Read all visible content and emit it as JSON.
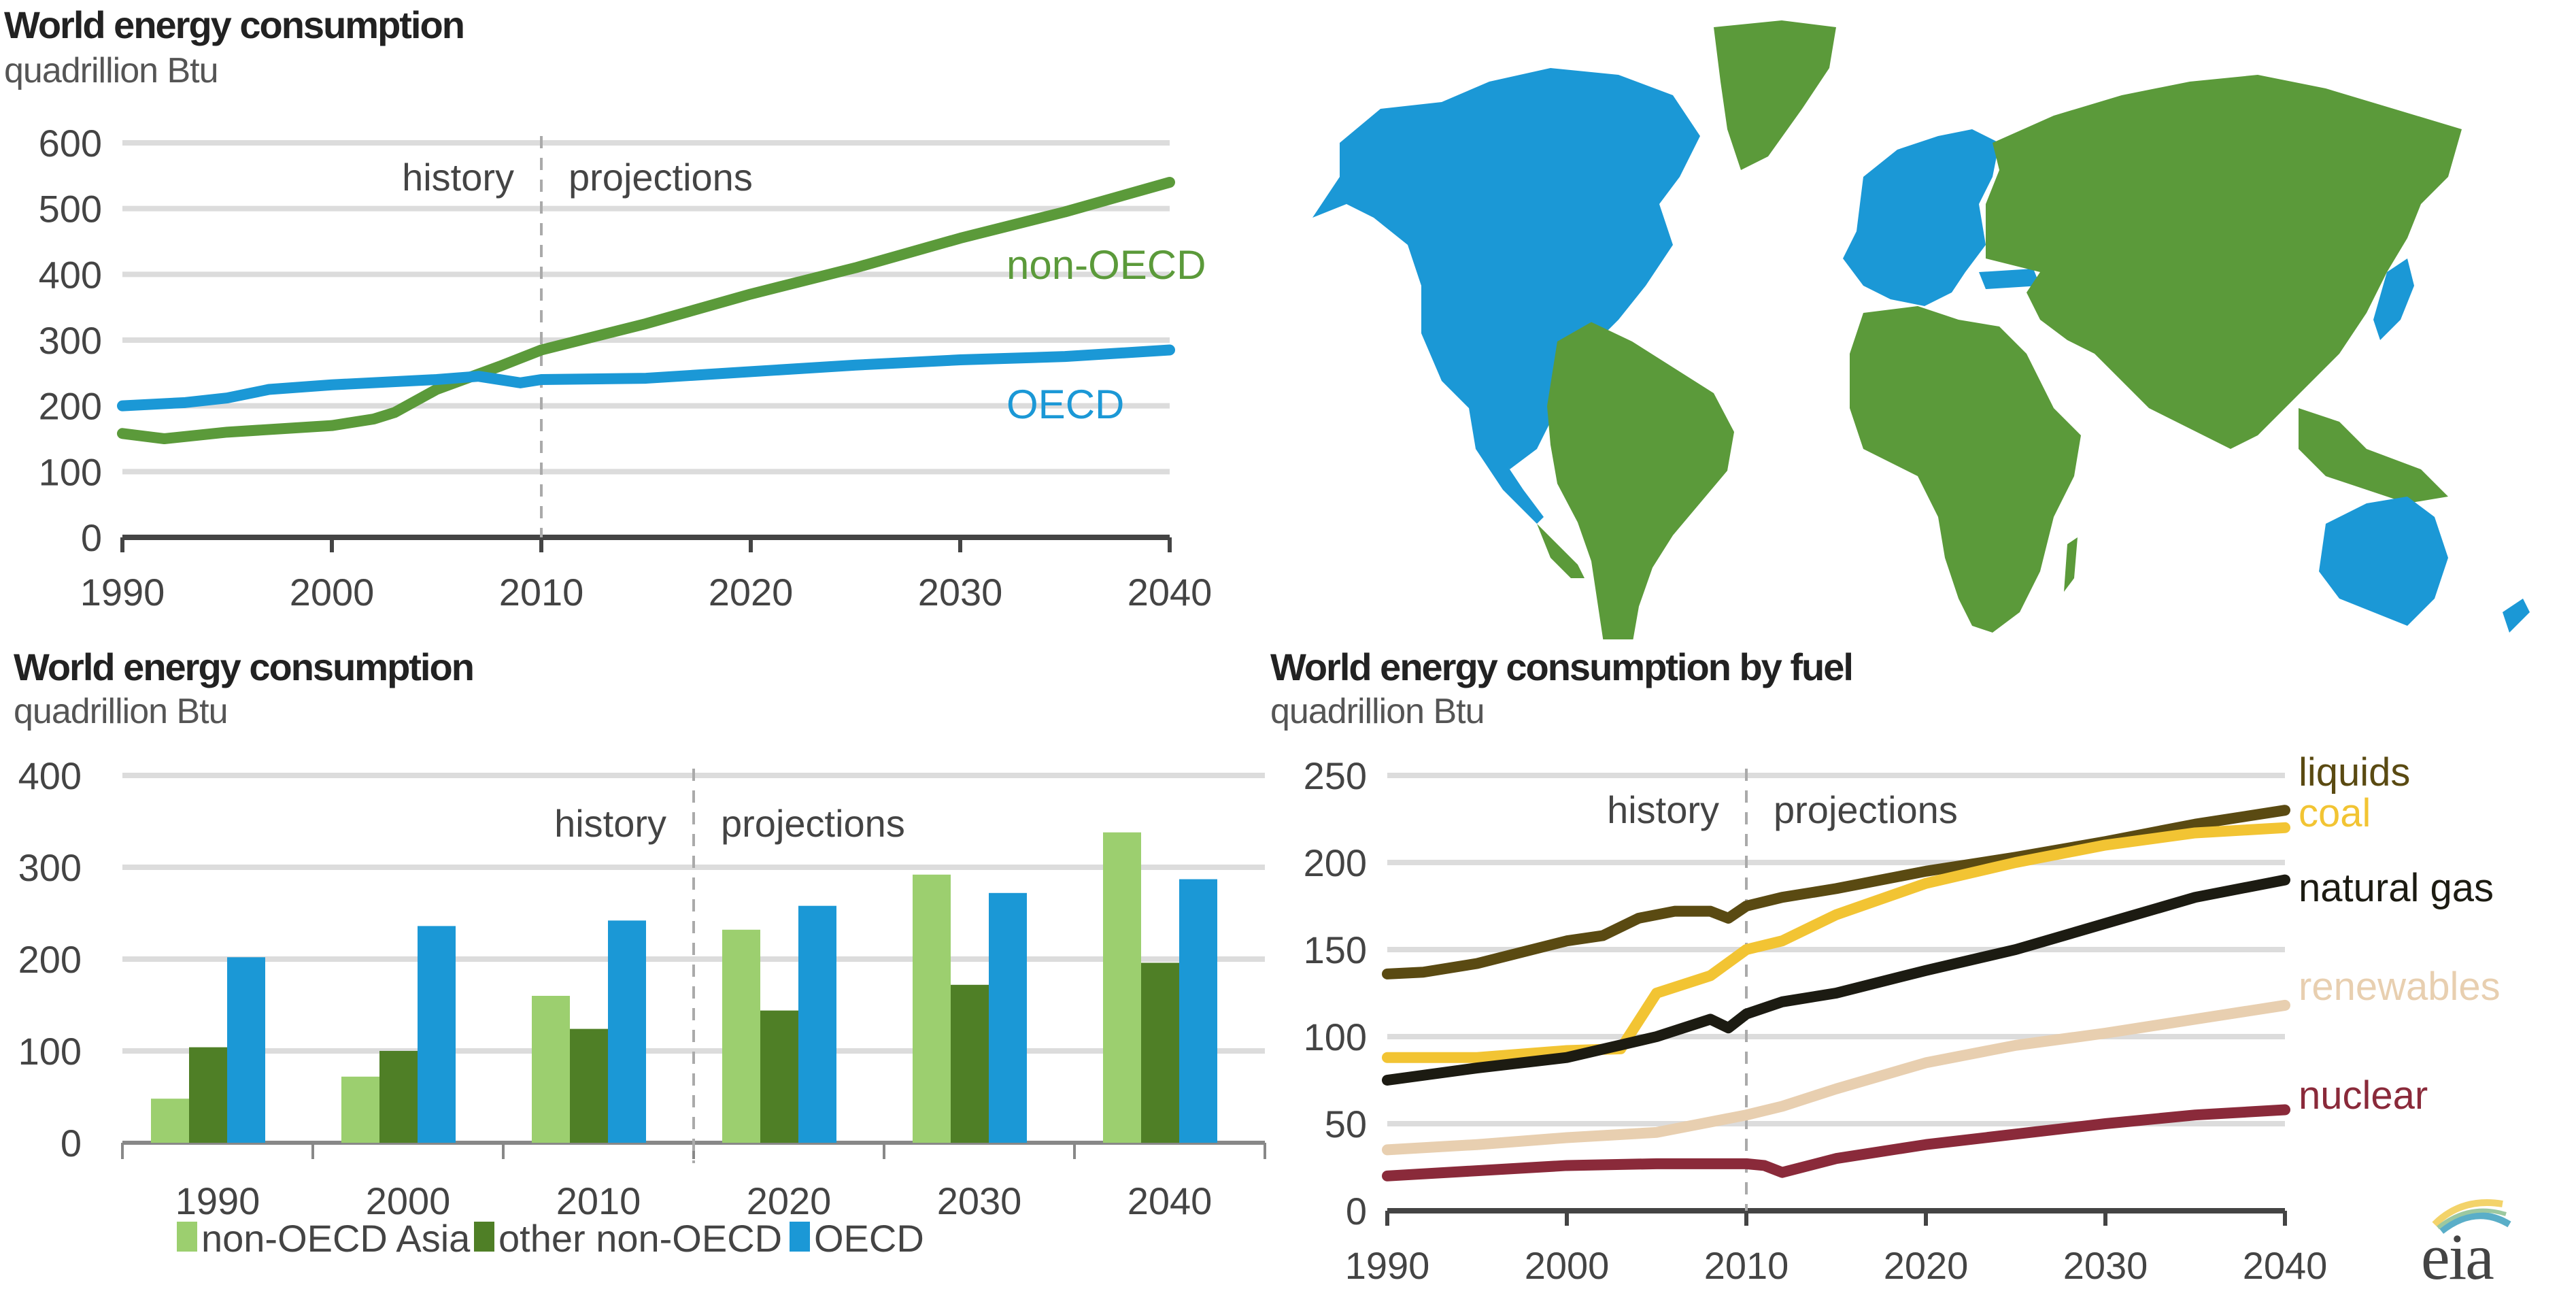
{
  "colors": {
    "non_oecd": "#5b9a3a",
    "oecd": "#1b98d6",
    "non_oecd_asia": "#9ccf6f",
    "other_non_oecd": "#4f7f26",
    "liquids": "#5a4a12",
    "coal": "#f2c433",
    "natural_gas": "#1c1b12",
    "renewables": "#e8cfb0",
    "nuclear": "#8a2a3a",
    "grid": "#dcdcdc",
    "axis": "#444444"
  },
  "map": {
    "legend_oecd": "OECD",
    "legend_non_oecd": "non-OECD"
  },
  "logo": {
    "text": "eia"
  },
  "chart_data": [
    {
      "id": "top-left",
      "type": "line",
      "title": "World energy consumption",
      "subtitle": "quadrillion Btu",
      "xlabel": "",
      "ylabel": "quadrillion Btu",
      "xlim": [
        1990,
        2040
      ],
      "ylim": [
        0,
        600
      ],
      "yticks": [
        0,
        100,
        200,
        300,
        400,
        500,
        600
      ],
      "xticks": [
        1990,
        2000,
        2010,
        2020,
        2030,
        2040
      ],
      "grid": true,
      "divider_year": 2010,
      "annotations": {
        "left": "history",
        "right": "projections"
      },
      "legend": "inline-right",
      "series": [
        {
          "name": "non-OECD",
          "color_key": "non_oecd",
          "x": [
            1990,
            1992,
            1995,
            2000,
            2002,
            2003,
            2005,
            2008,
            2010,
            2015,
            2020,
            2025,
            2030,
            2035,
            2040
          ],
          "y": [
            158,
            150,
            160,
            170,
            180,
            190,
            225,
            260,
            285,
            325,
            370,
            410,
            455,
            495,
            540
          ]
        },
        {
          "name": "OECD",
          "color_key": "oecd",
          "x": [
            1990,
            1993,
            1995,
            1997,
            2000,
            2005,
            2007,
            2009,
            2010,
            2015,
            2020,
            2025,
            2030,
            2035,
            2040
          ],
          "y": [
            200,
            205,
            212,
            225,
            232,
            240,
            245,
            235,
            240,
            242,
            252,
            262,
            270,
            275,
            285
          ]
        }
      ]
    },
    {
      "id": "bottom-left",
      "type": "bar",
      "title": "World energy consumption",
      "subtitle": "quadrillion Btu",
      "xlabel": "",
      "ylabel": "quadrillion Btu",
      "categories": [
        "1990",
        "2000",
        "2010",
        "2020",
        "2030",
        "2040"
      ],
      "ylim": [
        0,
        400
      ],
      "yticks": [
        0,
        100,
        200,
        300,
        400
      ],
      "grid": true,
      "divider_after_index": 2,
      "annotations": {
        "left": "history",
        "right": "projections"
      },
      "legend": "bottom",
      "series": [
        {
          "name": "non-OECD Asia",
          "color_key": "non_oecd_asia",
          "values": [
            48,
            72,
            160,
            232,
            292,
            338
          ]
        },
        {
          "name": "other non-OECD",
          "color_key": "other_non_oecd",
          "values": [
            104,
            100,
            124,
            144,
            172,
            196
          ]
        },
        {
          "name": "OECD",
          "color_key": "oecd",
          "values": [
            202,
            236,
            242,
            258,
            272,
            287
          ]
        }
      ]
    },
    {
      "id": "bottom-right",
      "type": "line",
      "title": "World energy consumption by fuel",
      "subtitle": "quadrillion Btu",
      "xlabel": "",
      "ylabel": "quadrillion Btu",
      "xlim": [
        1990,
        2040
      ],
      "ylim": [
        0,
        250
      ],
      "yticks": [
        0,
        50,
        100,
        150,
        200,
        250
      ],
      "xticks": [
        1990,
        2000,
        2010,
        2020,
        2030,
        2040
      ],
      "grid": true,
      "divider_year": 2010,
      "annotations": {
        "left": "history",
        "right": "projections"
      },
      "legend": "inline-right",
      "series": [
        {
          "name": "liquids",
          "color_key": "liquids",
          "x": [
            1990,
            1992,
            1995,
            2000,
            2002,
            2004,
            2006,
            2008,
            2009,
            2010,
            2012,
            2015,
            2020,
            2025,
            2030,
            2035,
            2040
          ],
          "y": [
            136,
            137,
            142,
            155,
            158,
            168,
            172,
            172,
            168,
            175,
            180,
            185,
            195,
            203,
            212,
            222,
            230
          ]
        },
        {
          "name": "coal",
          "color_key": "coal",
          "x": [
            1990,
            1995,
            2000,
            2003,
            2005,
            2008,
            2010,
            2012,
            2015,
            2020,
            2025,
            2030,
            2035,
            2040
          ],
          "y": [
            88,
            88,
            92,
            93,
            125,
            135,
            150,
            155,
            170,
            188,
            200,
            210,
            217,
            220
          ]
        },
        {
          "name": "natural gas",
          "color_key": "natural_gas",
          "x": [
            1990,
            1995,
            2000,
            2005,
            2008,
            2009,
            2010,
            2012,
            2015,
            2020,
            2025,
            2030,
            2035,
            2040
          ],
          "y": [
            75,
            82,
            88,
            100,
            110,
            105,
            113,
            120,
            125,
            138,
            150,
            165,
            180,
            190
          ]
        },
        {
          "name": "renewables",
          "color_key": "renewables",
          "x": [
            1990,
            1995,
            2000,
            2005,
            2010,
            2012,
            2015,
            2020,
            2025,
            2030,
            2035,
            2040
          ],
          "y": [
            35,
            38,
            42,
            45,
            55,
            60,
            70,
            85,
            95,
            102,
            110,
            118
          ]
        },
        {
          "name": "nuclear",
          "color_key": "nuclear",
          "x": [
            1990,
            1995,
            2000,
            2005,
            2010,
            2011,
            2012,
            2015,
            2020,
            2025,
            2030,
            2035,
            2040
          ],
          "y": [
            20,
            23,
            26,
            27,
            27,
            26,
            22,
            30,
            38,
            44,
            50,
            55,
            58
          ]
        }
      ]
    }
  ]
}
